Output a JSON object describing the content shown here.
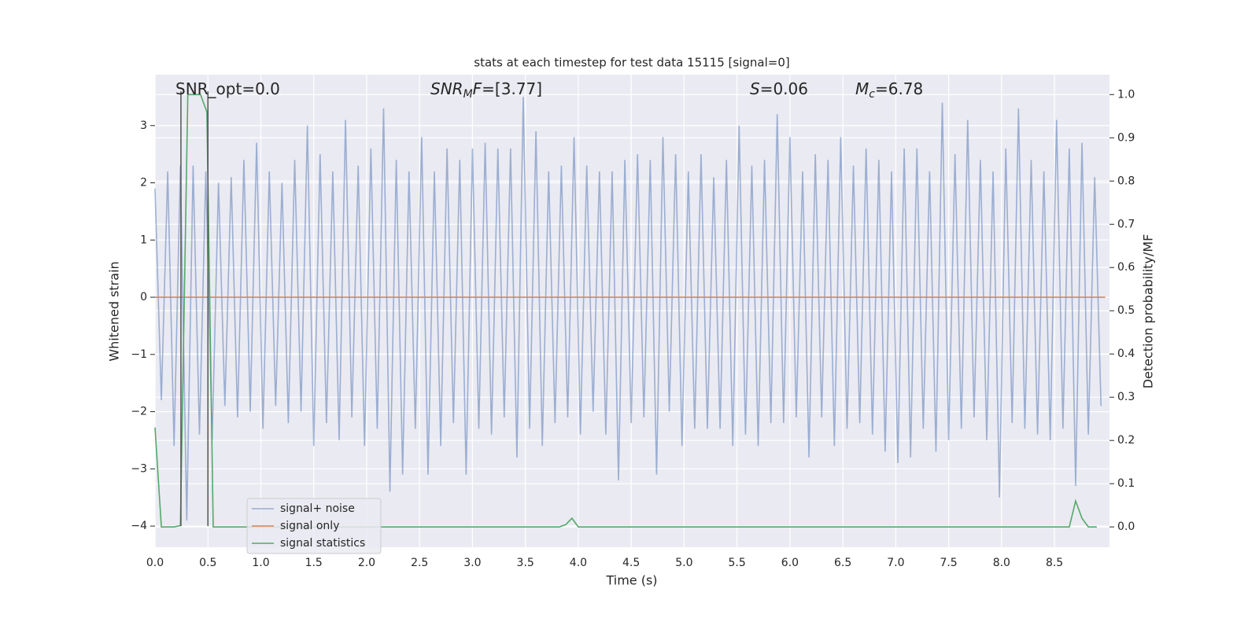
{
  "chart_data": {
    "type": "line",
    "title": "stats at each timestep for test data 15115 [signal=0]",
    "xlabel": "Time (s)",
    "ylabel": "Whitened strain",
    "y2label": "Detection probability/MF",
    "xlim": [
      0,
      9.02
    ],
    "ylim": [
      -4.37,
      3.89
    ],
    "y2lim": [
      -0.047,
      1.046
    ],
    "xticks": [
      {
        "value": 0,
        "label": "0.0"
      },
      0.5,
      {
        "value": 1,
        "label": "1.0"
      },
      1.5,
      {
        "value": 2,
        "label": "2.0"
      },
      2.5,
      {
        "value": 3,
        "label": "3.0"
      },
      3.5,
      {
        "value": 4,
        "label": "4.0"
      },
      4.5,
      {
        "value": 5,
        "label": "5.0"
      },
      5.5,
      {
        "value": 6,
        "label": "6.0"
      },
      6.5,
      {
        "value": 7,
        "label": "7.0"
      },
      7.5,
      {
        "value": 8,
        "label": "8.0"
      },
      8.5
    ],
    "yticks": [
      {
        "value": -4,
        "label": "−4"
      },
      {
        "value": -3,
        "label": "−3"
      },
      {
        "value": -2,
        "label": "−2"
      },
      {
        "value": -1,
        "label": "−1"
      },
      0,
      1,
      2,
      3
    ],
    "y2ticks": [
      {
        "value": 0,
        "label": "0.0"
      },
      0.1,
      0.2,
      0.3,
      0.4,
      0.5,
      0.6,
      0.7,
      0.8,
      0.9,
      {
        "value": 1,
        "label": "1.0"
      }
    ],
    "grid": true,
    "legend": "lower left",
    "annotations": [
      {
        "parts": [
          {
            "text": "SNR_opt=0.0",
            "style": "plain"
          }
        ]
      },
      {
        "parts": [
          {
            "text": "SNR",
            "style": "italic"
          },
          {
            "text": "M",
            "style": "sub"
          },
          {
            "text": "F",
            "style": "italic"
          },
          {
            "text": "=[3.77]",
            "style": "plain"
          }
        ]
      },
      {
        "parts": [
          {
            "text": "S",
            "style": "italic"
          },
          {
            "text": "=0.06",
            "style": "plain"
          }
        ]
      },
      {
        "parts": [
          {
            "text": "M",
            "style": "italic"
          },
          {
            "text": "c",
            "style": "sub"
          },
          {
            "text": "=6.78",
            "style": "plain"
          }
        ]
      }
    ],
    "vlines": {
      "x": [
        0.245,
        0.5
      ],
      "ymin": -4,
      "ymax": 3.6,
      "color": "#555555"
    },
    "series": [
      {
        "name": "signal+ noise",
        "color": "#4c72b0",
        "opacity": 0.5,
        "x": [
          0,
          0.06,
          0.12,
          0.18,
          0.24,
          0.3,
          0.36,
          0.42,
          0.48,
          0.54,
          0.6,
          0.66,
          0.72,
          0.78,
          0.84,
          0.9,
          0.96,
          1.02,
          1.08,
          1.14,
          1.2,
          1.26,
          1.32,
          1.38,
          1.44,
          1.5,
          1.56,
          1.62,
          1.68,
          1.74,
          1.8,
          1.86,
          1.92,
          1.98,
          2.04,
          2.1,
          2.16,
          2.22,
          2.28,
          2.34,
          2.4,
          2.46,
          2.52,
          2.58,
          2.64,
          2.7,
          2.76,
          2.82,
          2.88,
          2.94,
          3.0,
          3.06,
          3.12,
          3.18,
          3.24,
          3.3,
          3.36,
          3.42,
          3.48,
          3.54,
          3.6,
          3.66,
          3.72,
          3.78,
          3.84,
          3.9,
          3.96,
          4.02,
          4.08,
          4.14,
          4.2,
          4.26,
          4.32,
          4.38,
          4.44,
          4.5,
          4.56,
          4.62,
          4.68,
          4.74,
          4.8,
          4.86,
          4.92,
          4.98,
          5.04,
          5.1,
          5.16,
          5.22,
          5.28,
          5.34,
          5.4,
          5.46,
          5.52,
          5.58,
          5.64,
          5.7,
          5.76,
          5.82,
          5.88,
          5.94,
          6.0,
          6.06,
          6.12,
          6.18,
          6.24,
          6.3,
          6.36,
          6.42,
          6.48,
          6.54,
          6.6,
          6.66,
          6.72,
          6.78,
          6.84,
          6.9,
          6.96,
          7.02,
          7.08,
          7.14,
          7.2,
          7.26,
          7.32,
          7.38,
          7.44,
          7.5,
          7.56,
          7.62,
          7.68,
          7.74,
          7.8,
          7.86,
          7.92,
          7.98,
          8.04,
          8.1,
          8.16,
          8.22,
          8.28,
          8.34,
          8.4,
          8.46,
          8.52,
          8.58,
          8.64,
          8.7,
          8.76,
          8.82,
          8.88,
          8.94
        ],
        "values": [
          1.9,
          -1.8,
          2.2,
          -2.6,
          2.3,
          -3.9,
          2.3,
          -2.4,
          2.2,
          -2.5,
          2.0,
          -1.9,
          2.1,
          -2.1,
          2.4,
          -2.0,
          2.7,
          -2.3,
          2.2,
          -1.9,
          2.0,
          -2.2,
          2.4,
          -2.0,
          3.0,
          -2.6,
          2.5,
          -2.2,
          2.2,
          -2.5,
          3.1,
          -2.1,
          2.3,
          -2.6,
          2.6,
          -2.3,
          3.3,
          -3.4,
          2.4,
          -3.1,
          2.2,
          -2.3,
          2.8,
          -3.1,
          2.2,
          -2.6,
          2.6,
          -2.2,
          2.4,
          -3.1,
          2.6,
          -2.3,
          2.7,
          -2.4,
          2.6,
          -2.1,
          2.6,
          -2.8,
          3.5,
          -2.3,
          2.9,
          -2.6,
          2.2,
          -2.2,
          2.3,
          -2.1,
          2.8,
          -2.4,
          2.3,
          -2.0,
          2.2,
          -2.4,
          2.2,
          -3.2,
          2.4,
          -2.2,
          2.5,
          -2.1,
          2.4,
          -3.1,
          2.8,
          -2.0,
          2.5,
          -2.6,
          2.2,
          -2.3,
          2.5,
          -2.3,
          2.1,
          -2.3,
          2.4,
          -2.6,
          3.0,
          -2.4,
          2.3,
          -2.6,
          2.4,
          -2.2,
          3.2,
          -2.2,
          2.8,
          -2.1,
          2.2,
          -2.8,
          2.5,
          -2.1,
          2.4,
          -2.6,
          2.8,
          -2.3,
          2.3,
          -2.2,
          2.6,
          -2.4,
          2.4,
          -2.7,
          2.2,
          -2.9,
          2.6,
          -2.8,
          2.6,
          -2.3,
          2.2,
          -2.7,
          3.4,
          -2.5,
          2.5,
          -2.3,
          3.1,
          -2.1,
          2.4,
          -2.5,
          2.2,
          -3.5,
          2.6,
          -2.2,
          3.3,
          -2.3,
          2.4,
          -2.4,
          2.2,
          -2.5,
          3.1,
          -2.3,
          2.6,
          -3.3,
          2.7,
          -2.4,
          2.1,
          -1.9
        ]
      },
      {
        "name": "signal only",
        "color": "#dd8452",
        "opacity": 1,
        "x": [
          0,
          8.98
        ],
        "values": [
          0,
          0
        ]
      },
      {
        "name": "signal statistics",
        "color": "#55a868",
        "opacity": 1,
        "axis": "y2",
        "x": [
          0,
          0.06,
          0.12,
          0.18,
          0.24,
          0.31,
          0.37,
          0.43,
          0.49,
          0.55,
          0.61,
          3.82,
          3.88,
          3.94,
          4.0,
          8.64,
          8.7,
          8.76,
          8.82,
          8.9
        ],
        "values": [
          0.23,
          0,
          0,
          0,
          0.003,
          1.0,
          1.0,
          1.0,
          0.96,
          0,
          0,
          0,
          0.005,
          0.02,
          0,
          0,
          0.06,
          0.02,
          0,
          0
        ]
      }
    ]
  }
}
